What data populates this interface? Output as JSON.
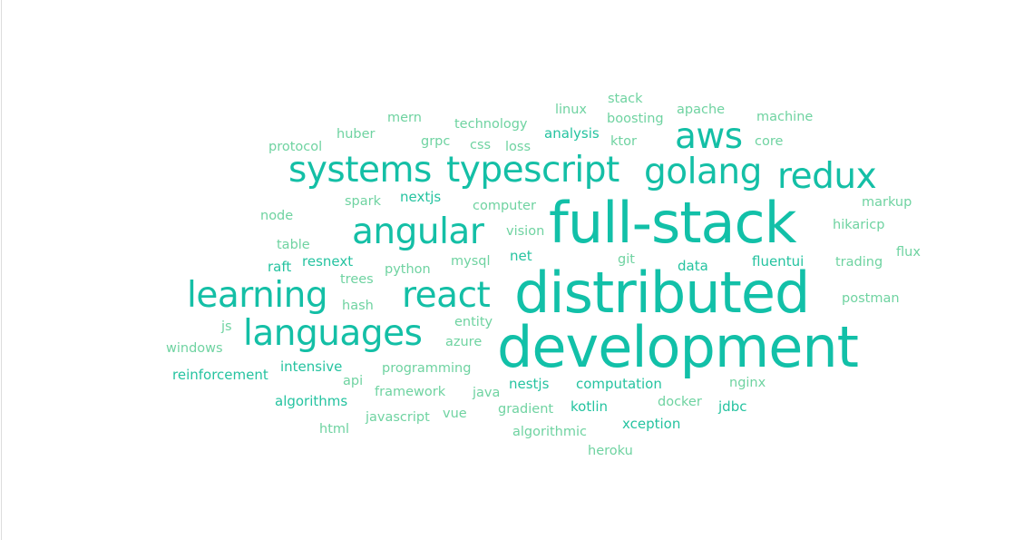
{
  "word_cloud": {
    "colors": {
      "primary": "#12c0a8",
      "secondary": "#14bfa6",
      "medium": "#25c3a0",
      "light": "#6fd3a1"
    },
    "words": [
      {
        "text": "development",
        "tier": 1
      },
      {
        "text": "distributed",
        "tier": 1
      },
      {
        "text": "full-stack",
        "tier": 1
      },
      {
        "text": "aws",
        "tier": 2
      },
      {
        "text": "golang",
        "tier": 2
      },
      {
        "text": "redux",
        "tier": 2
      },
      {
        "text": "systems",
        "tier": 2
      },
      {
        "text": "typescript",
        "tier": 2
      },
      {
        "text": "angular",
        "tier": 2
      },
      {
        "text": "learning",
        "tier": 2
      },
      {
        "text": "react",
        "tier": 2
      },
      {
        "text": "languages",
        "tier": 2
      },
      {
        "text": "stack",
        "tier": 4
      },
      {
        "text": "linux",
        "tier": 4
      },
      {
        "text": "boosting",
        "tier": 4
      },
      {
        "text": "apache",
        "tier": 4
      },
      {
        "text": "machine",
        "tier": 4
      },
      {
        "text": "mern",
        "tier": 4
      },
      {
        "text": "technology",
        "tier": 4
      },
      {
        "text": "analysis",
        "tier": 3
      },
      {
        "text": "huber",
        "tier": 4
      },
      {
        "text": "grpc",
        "tier": 4
      },
      {
        "text": "css",
        "tier": 4
      },
      {
        "text": "loss",
        "tier": 4
      },
      {
        "text": "ktor",
        "tier": 4
      },
      {
        "text": "core",
        "tier": 4
      },
      {
        "text": "protocol",
        "tier": 4
      },
      {
        "text": "spark",
        "tier": 4
      },
      {
        "text": "nextjs",
        "tier": 3
      },
      {
        "text": "computer",
        "tier": 4
      },
      {
        "text": "markup",
        "tier": 4
      },
      {
        "text": "node",
        "tier": 4
      },
      {
        "text": "hikaricp",
        "tier": 4
      },
      {
        "text": "vision",
        "tier": 4
      },
      {
        "text": "table",
        "tier": 4
      },
      {
        "text": "net",
        "tier": 3
      },
      {
        "text": "flux",
        "tier": 4
      },
      {
        "text": "raft",
        "tier": 3
      },
      {
        "text": "resnext",
        "tier": 3
      },
      {
        "text": "python",
        "tier": 4
      },
      {
        "text": "mysql",
        "tier": 4
      },
      {
        "text": "git",
        "tier": 4
      },
      {
        "text": "data",
        "tier": 3
      },
      {
        "text": "fluentui",
        "tier": 3
      },
      {
        "text": "trading",
        "tier": 4
      },
      {
        "text": "trees",
        "tier": 4
      },
      {
        "text": "hash",
        "tier": 4
      },
      {
        "text": "postman",
        "tier": 4
      },
      {
        "text": "js",
        "tier": 4
      },
      {
        "text": "entity",
        "tier": 4
      },
      {
        "text": "windows",
        "tier": 4
      },
      {
        "text": "azure",
        "tier": 4
      },
      {
        "text": "intensive",
        "tier": 3
      },
      {
        "text": "programming",
        "tier": 4
      },
      {
        "text": "reinforcement",
        "tier": 3
      },
      {
        "text": "api",
        "tier": 4
      },
      {
        "text": "nestjs",
        "tier": 3
      },
      {
        "text": "computation",
        "tier": 3
      },
      {
        "text": "nginx",
        "tier": 4
      },
      {
        "text": "algorithms",
        "tier": 3
      },
      {
        "text": "framework",
        "tier": 4
      },
      {
        "text": "java",
        "tier": 4
      },
      {
        "text": "docker",
        "tier": 4
      },
      {
        "text": "jdbc",
        "tier": 3
      },
      {
        "text": "gradient",
        "tier": 4
      },
      {
        "text": "kotlin",
        "tier": 3
      },
      {
        "text": "javascript",
        "tier": 4
      },
      {
        "text": "vue",
        "tier": 4
      },
      {
        "text": "html",
        "tier": 4
      },
      {
        "text": "xception",
        "tier": 3
      },
      {
        "text": "algorithmic",
        "tier": 4
      },
      {
        "text": "heroku",
        "tier": 4
      }
    ]
  }
}
